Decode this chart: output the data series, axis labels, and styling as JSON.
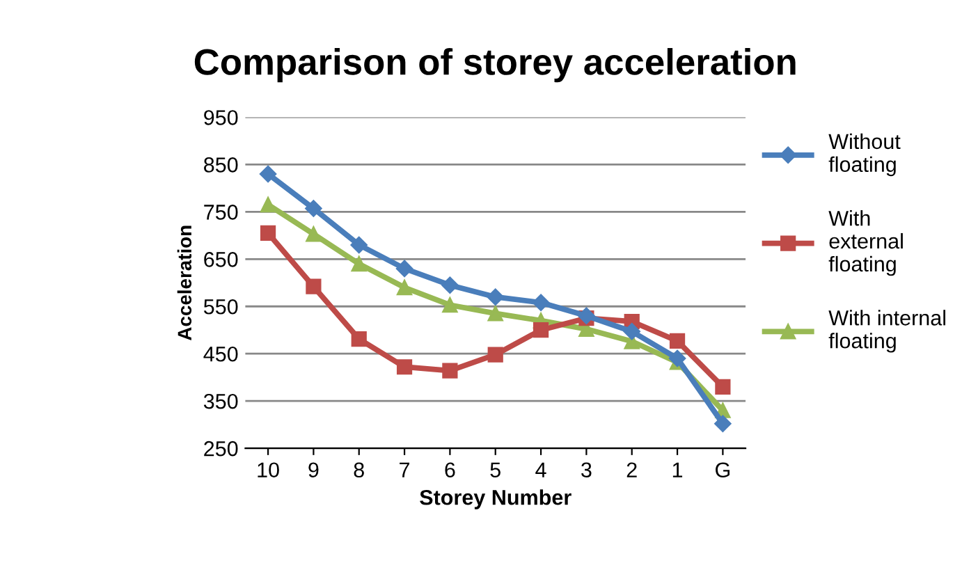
{
  "chart_data": {
    "type": "line",
    "title": "Comparison of storey acceleration",
    "xlabel": "Storey Number",
    "ylabel": "Acceleration",
    "categories": [
      "10",
      "9",
      "8",
      "7",
      "6",
      "5",
      "4",
      "3",
      "2",
      "1",
      "G"
    ],
    "series": [
      {
        "name": "Without\nfloating",
        "color": "#4a7ebb",
        "marker": "diamond",
        "values": [
          830,
          757,
          680,
          630,
          595,
          570,
          558,
          530,
          497,
          440,
          302
        ]
      },
      {
        "name": "With\nexternal\nfloating",
        "color": "#be4b48",
        "marker": "square",
        "values": [
          705,
          592,
          481,
          422,
          414,
          448,
          500,
          525,
          518,
          477,
          380
        ]
      },
      {
        "name": "With internal\nfloating",
        "color": "#98b954",
        "marker": "triangle",
        "values": [
          765,
          703,
          640,
          590,
          553,
          535,
          520,
          502,
          476,
          432,
          330
        ]
      }
    ],
    "ylim": [
      250,
      950
    ],
    "yticks": [
      250,
      350,
      450,
      550,
      650,
      750,
      850,
      950
    ],
    "grid": "y",
    "legend": "right",
    "line_style": "solid"
  }
}
